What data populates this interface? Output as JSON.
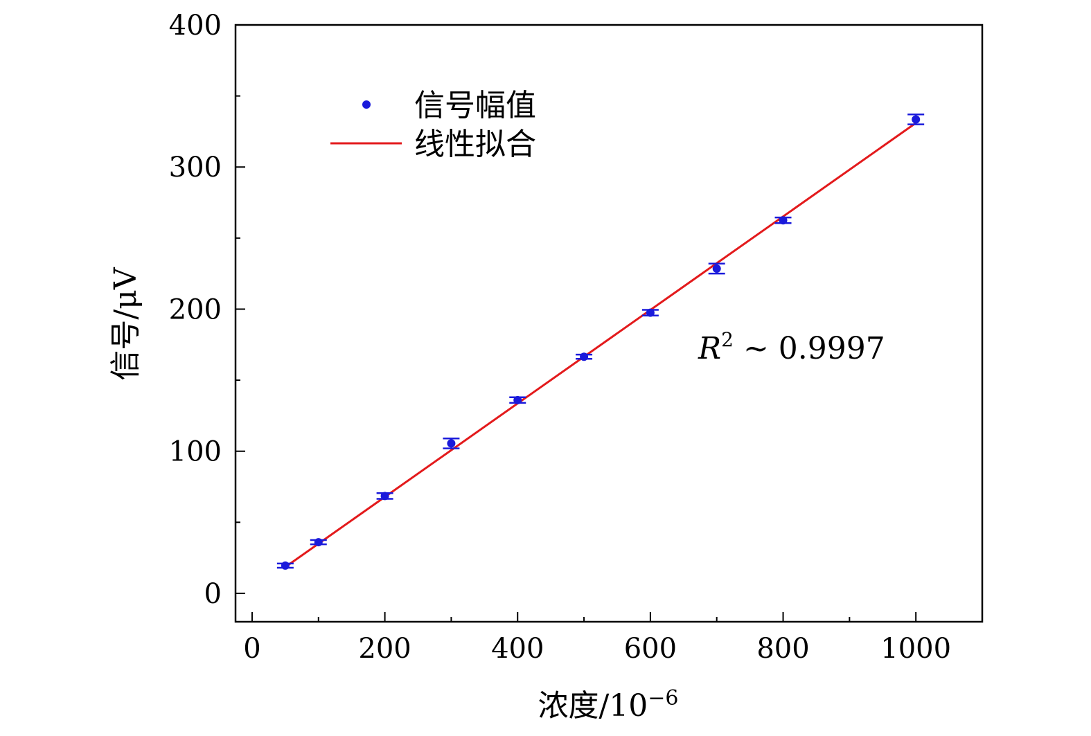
{
  "chart_data": {
    "type": "scatter",
    "title": "",
    "xlabel": "浓度/10",
    "xlabel_exp": "−6",
    "ylabel": "信号/μV",
    "xlim": [
      -25,
      1100
    ],
    "ylim": [
      -20,
      400
    ],
    "xticks": [
      0,
      200,
      400,
      600,
      800,
      1000
    ],
    "xtick_labels": [
      "0",
      "200",
      "400",
      "600",
      "800",
      "1000"
    ],
    "x_minor_ticks": [
      100,
      300,
      500,
      700,
      900,
      1100
    ],
    "yticks": [
      0,
      100,
      200,
      300,
      400
    ],
    "ytick_labels": [
      "0",
      "100",
      "200",
      "300",
      "400"
    ],
    "y_minor_ticks": [
      50,
      150,
      250,
      350
    ],
    "grid": false,
    "legend_position": "top-left",
    "series": [
      {
        "name": "信号幅值",
        "kind": "scatter-errorbar",
        "color": "#1a1adb",
        "x": [
          50,
          100,
          200,
          300,
          400,
          500,
          600,
          700,
          800,
          1000
        ],
        "y": [
          19.5,
          36,
          68.5,
          105.5,
          136,
          166.5,
          197.5,
          228.5,
          262.5,
          333.5
        ],
        "err": [
          1.5,
          1.5,
          2,
          3.5,
          2,
          1.5,
          2,
          3.5,
          2,
          3.5
        ]
      },
      {
        "name": "线性拟合",
        "kind": "line",
        "color": "#e31a1c",
        "x": [
          50,
          1000
        ],
        "y": [
          18.5,
          331
        ]
      }
    ],
    "annotation": {
      "text_r": "R",
      "text_sup": "2",
      "text_rest": " ∼ 0.9997",
      "at": [
        670,
        172
      ]
    }
  }
}
